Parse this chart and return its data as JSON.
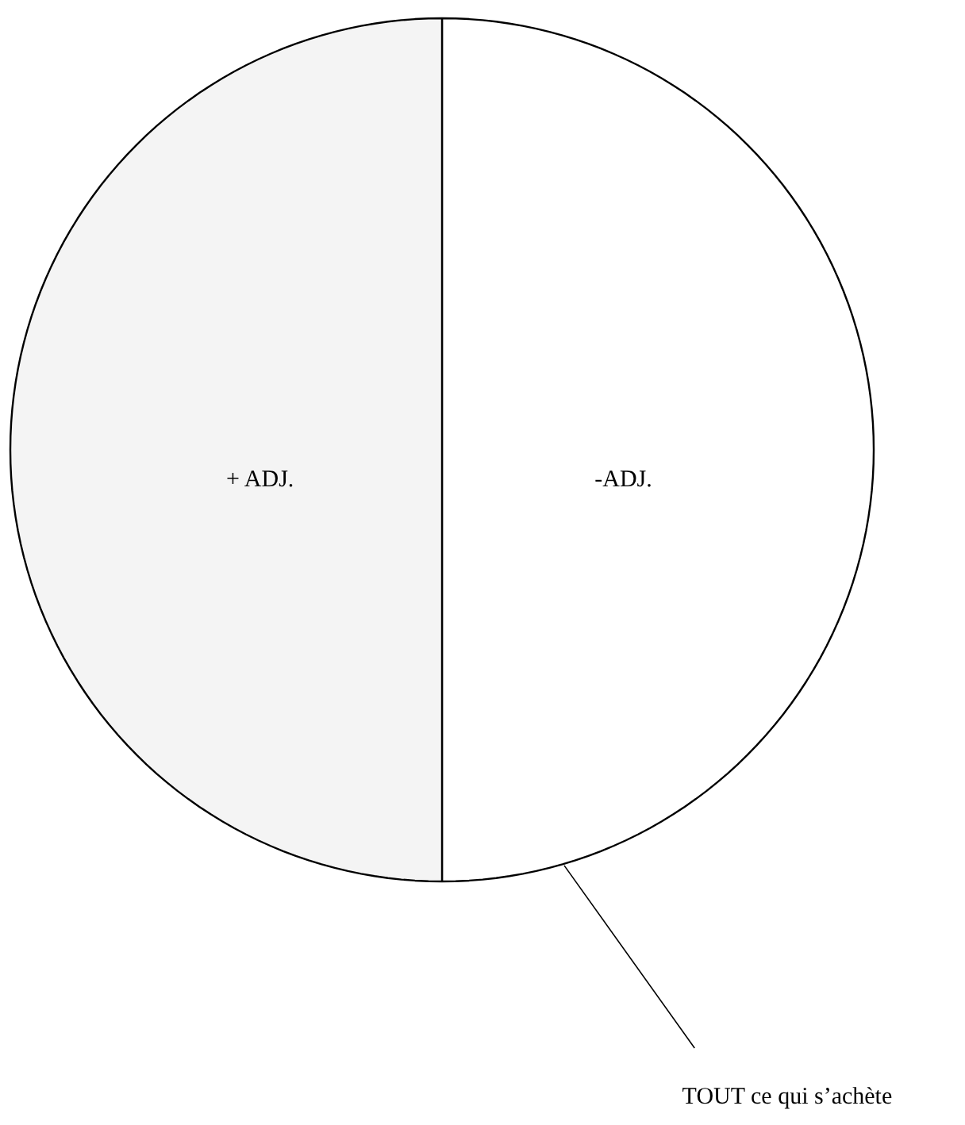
{
  "chart_data": {
    "type": "pie",
    "categories": [
      "-ADJ.",
      "+ ADJ."
    ],
    "values": [
      50,
      50
    ],
    "colors": [
      "#ffffff",
      "#f4f4f4"
    ],
    "annotations": [
      "TOUT ce qui s’achète"
    ]
  }
}
